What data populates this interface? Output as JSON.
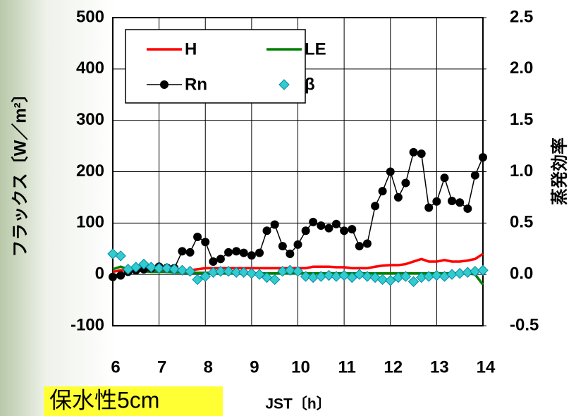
{
  "chart_data": {
    "type": "line",
    "y_label": "フラックス〔W／m²〕",
    "y2_label": "蒸発効率",
    "x_label": "JST〔h〕",
    "caption": "保水性5cm",
    "x": [
      6,
      6.17,
      6.33,
      6.5,
      6.67,
      6.83,
      7,
      7.17,
      7.33,
      7.5,
      7.67,
      7.83,
      8,
      8.17,
      8.33,
      8.5,
      8.67,
      8.83,
      9,
      9.17,
      9.33,
      9.5,
      9.67,
      9.83,
      10,
      10.17,
      10.33,
      10.5,
      10.67,
      10.83,
      11,
      11.17,
      11.33,
      11.5,
      11.67,
      11.83,
      12,
      12.17,
      12.33,
      12.5,
      12.67,
      12.83,
      13,
      13.17,
      13.33,
      13.5,
      13.67,
      13.83,
      14
    ],
    "series": [
      {
        "name": "H",
        "color": "#ff0000",
        "marker": "none",
        "line": true,
        "values": [
          5,
          8,
          8,
          8,
          8,
          8,
          8,
          8,
          8,
          8,
          8,
          10,
          12,
          12,
          12,
          12,
          12,
          12,
          12,
          12,
          12,
          12,
          12,
          12,
          12,
          12,
          15,
          15,
          15,
          14,
          14,
          12,
          12,
          12,
          15,
          17,
          18,
          18,
          20,
          25,
          30,
          25,
          25,
          28,
          25,
          25,
          27,
          30,
          40
        ]
      },
      {
        "name": "LE",
        "color": "#008000",
        "marker": "none",
        "line": true,
        "values": [
          10,
          15,
          10,
          8,
          6,
          5,
          5,
          5,
          4,
          4,
          3,
          3,
          3,
          3,
          2,
          2,
          2,
          2,
          2,
          2,
          2,
          2,
          2,
          2,
          2,
          2,
          2,
          2,
          2,
          2,
          2,
          2,
          2,
          2,
          2,
          2,
          2,
          2,
          2,
          2,
          2,
          2,
          2,
          2,
          2,
          2,
          2,
          0,
          -20
        ]
      },
      {
        "name": "Rn",
        "color": "#000000",
        "marker": "circle",
        "line": true,
        "values": [
          -5,
          -2,
          5,
          8,
          10,
          12,
          15,
          13,
          12,
          45,
          43,
          73,
          63,
          25,
          30,
          43,
          45,
          42,
          37,
          42,
          85,
          97,
          55,
          40,
          58,
          85,
          102,
          95,
          90,
          98,
          85,
          88,
          55,
          60,
          133,
          162,
          200,
          150,
          178,
          238,
          235,
          130,
          142,
          188,
          143,
          140,
          128,
          193,
          228
        ]
      },
      {
        "name": "β",
        "color": "#33cccc",
        "marker": "diamond",
        "line": false,
        "axis": "y2",
        "values": [
          0.2,
          0.18,
          0.05,
          0.07,
          0.1,
          0.07,
          0.06,
          0.06,
          0.05,
          0.04,
          0.03,
          -0.05,
          -0.02,
          0.02,
          0.03,
          0.03,
          0.02,
          0.02,
          0.01,
          0.0,
          -0.03,
          -0.05,
          0.03,
          0.04,
          0.03,
          -0.02,
          -0.03,
          -0.02,
          -0.01,
          -0.02,
          -0.01,
          -0.03,
          0.0,
          -0.02,
          -0.03,
          -0.05,
          -0.06,
          -0.03,
          -0.02,
          -0.07,
          -0.03,
          -0.02,
          -0.01,
          -0.02,
          0.0,
          0.01,
          0.02,
          0.03,
          0.04
        ]
      }
    ],
    "xlim": [
      6,
      14
    ],
    "xticks": [
      6,
      7,
      8,
      9,
      10,
      11,
      12,
      13,
      14
    ],
    "ylim": [
      -100,
      500
    ],
    "yticks": [
      -100,
      0,
      100,
      200,
      300,
      400,
      500
    ],
    "y2lim": [
      -0.5,
      2.5
    ],
    "y2ticks": [
      -0.5,
      {
        "value": 0,
        "label": "0.0"
      },
      0.5,
      {
        "value": 1,
        "label": "1.0"
      },
      1.5,
      {
        "value": 2,
        "label": "2.0"
      },
      2.5
    ],
    "grid": true,
    "legend": "upper left"
  }
}
